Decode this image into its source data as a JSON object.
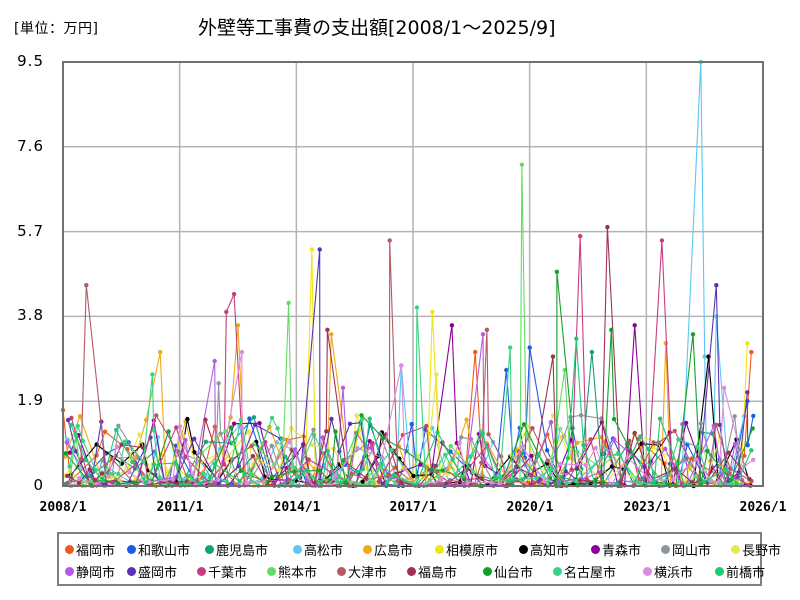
{
  "header": {
    "unit_label": "[単位：万円]",
    "title": "外壁等工事費の支出額[2008/1～2025/9]"
  },
  "chart_data": {
    "type": "line",
    "title": "外壁等工事費の支出額[2008/1～2025/9]",
    "xlabel": "",
    "ylabel": "[単位：万円]",
    "x_range": [
      "2008/1",
      "2026/1"
    ],
    "ylim": [
      0,
      9.5
    ],
    "y_ticks": [
      "0",
      "1.9",
      "3.8",
      "5.7",
      "7.6",
      "9.5"
    ],
    "x_ticks": [
      "2008/1",
      "2011/1",
      "2014/1",
      "2017/1",
      "2020/1",
      "2023/1",
      "2026/1"
    ],
    "grid": true,
    "legend_position": "bottom",
    "series": [
      {
        "name": "福岡市",
        "color": "#f05a1e",
        "peaks": [
          [
            2008.0,
            1.7
          ],
          [
            2018.6,
            3.0
          ],
          [
            2025.7,
            3.0
          ]
        ]
      },
      {
        "name": "和歌山市",
        "color": "#1e5ae6",
        "peaks": [
          [
            2019.4,
            2.6
          ],
          [
            2020.0,
            3.1
          ],
          [
            2025.6,
            1.9
          ]
        ]
      },
      {
        "name": "鹿児島市",
        "color": "#14a078",
        "peaks": [
          [
            2021.6,
            3.0
          ],
          [
            2024.4,
            1.2
          ]
        ]
      },
      {
        "name": "高松市",
        "color": "#5ac8f0",
        "peaks": [
          [
            2024.4,
            9.5
          ],
          [
            2024.5,
            2.9
          ],
          [
            2024.8,
            3.8
          ],
          [
            2016.7,
            2.7
          ]
        ]
      },
      {
        "name": "広島市",
        "color": "#f0aa14",
        "peaks": [
          [
            2010.5,
            3.0
          ],
          [
            2012.5,
            3.6
          ],
          [
            2023.5,
            3.2
          ],
          [
            2014.9,
            3.4
          ]
        ]
      },
      {
        "name": "相模原市",
        "color": "#f0e614",
        "peaks": [
          [
            2014.4,
            5.3
          ],
          [
            2017.5,
            3.9
          ],
          [
            2025.6,
            3.2
          ]
        ]
      },
      {
        "name": "高知市",
        "color": "#000000",
        "peaks": [
          [
            2011.2,
            1.5
          ],
          [
            2016.2,
            1.2
          ],
          [
            2024.6,
            2.9
          ]
        ]
      },
      {
        "name": "青森市",
        "color": "#8c0096",
        "peaks": [
          [
            2018.0,
            3.6
          ],
          [
            2022.7,
            3.6
          ],
          [
            2023.6,
            1.2
          ]
        ]
      },
      {
        "name": "岡山市",
        "color": "#8c96a0",
        "peaks": [
          [
            2012.0,
            2.3
          ],
          [
            2024.4,
            1.4
          ]
        ]
      },
      {
        "name": "長野市",
        "color": "#e6e650",
        "peaks": [
          [
            2017.6,
            2.5
          ],
          [
            2024.9,
            1.1
          ]
        ]
      },
      {
        "name": "静岡市",
        "color": "#b45ae6",
        "peaks": [
          [
            2011.9,
            2.8
          ],
          [
            2015.2,
            2.2
          ],
          [
            2018.8,
            3.4
          ]
        ]
      },
      {
        "name": "盛岡市",
        "color": "#5a32b4",
        "peaks": [
          [
            2014.6,
            5.3
          ],
          [
            2024.8,
            4.5
          ],
          [
            2025.6,
            2.1
          ]
        ]
      },
      {
        "name": "千葉市",
        "color": "#c83c82",
        "peaks": [
          [
            2012.2,
            3.9
          ],
          [
            2012.4,
            4.3
          ],
          [
            2021.3,
            5.6
          ],
          [
            2023.4,
            5.5
          ]
        ]
      },
      {
        "name": "熊本市",
        "color": "#64dc64",
        "peaks": [
          [
            2013.8,
            4.1
          ],
          [
            2019.8,
            7.2
          ],
          [
            2020.9,
            2.6
          ]
        ]
      },
      {
        "name": "大津市",
        "color": "#b45a64",
        "peaks": [
          [
            2008.6,
            4.5
          ],
          [
            2016.4,
            5.5
          ],
          [
            2018.9,
            3.5
          ]
        ]
      },
      {
        "name": "福島市",
        "color": "#a03250",
        "peaks": [
          [
            2022.0,
            5.8
          ],
          [
            2020.6,
            2.9
          ],
          [
            2014.8,
            3.5
          ]
        ]
      },
      {
        "name": "仙台市",
        "color": "#14a028",
        "peaks": [
          [
            2020.7,
            4.8
          ],
          [
            2024.2,
            3.4
          ],
          [
            2022.1,
            3.5
          ]
        ]
      },
      {
        "name": "名古屋市",
        "color": "#3cd282",
        "peaks": [
          [
            2017.1,
            4.0
          ],
          [
            2010.3,
            2.5
          ],
          [
            2019.5,
            3.1
          ]
        ]
      },
      {
        "name": "横浜市",
        "color": "#dc8cdc",
        "peaks": [
          [
            2012.6,
            3.0
          ],
          [
            2016.7,
            2.7
          ],
          [
            2025.0,
            2.2
          ]
        ]
      },
      {
        "name": "前橋市",
        "color": "#1ec878",
        "peaks": [
          [
            2021.2,
            3.3
          ],
          [
            2025.7,
            0.8
          ]
        ]
      }
    ]
  },
  "legend": {
    "row1": [
      {
        "label": "福岡市",
        "color": "#f05a1e"
      },
      {
        "label": "和歌山市",
        "color": "#1e5ae6"
      },
      {
        "label": "鹿児島市",
        "color": "#14a078"
      },
      {
        "label": "高松市",
        "color": "#5ac8f0"
      },
      {
        "label": "広島市",
        "color": "#f0aa14"
      },
      {
        "label": "相模原市",
        "color": "#f0e614"
      },
      {
        "label": "高知市",
        "color": "#000000"
      },
      {
        "label": "青森市",
        "color": "#8c0096"
      },
      {
        "label": "岡山市",
        "color": "#8c96a0"
      },
      {
        "label": "長野市",
        "color": "#e6e650"
      }
    ],
    "row2": [
      {
        "label": "静岡市",
        "color": "#b45ae6"
      },
      {
        "label": "盛岡市",
        "color": "#5a32b4"
      },
      {
        "label": "千葉市",
        "color": "#c83c82"
      },
      {
        "label": "熊本市",
        "color": "#64dc64"
      },
      {
        "label": "大津市",
        "color": "#b45a64"
      },
      {
        "label": "福島市",
        "color": "#a03250"
      },
      {
        "label": "仙台市",
        "color": "#14a028"
      },
      {
        "label": "名古屋市",
        "color": "#3cd282"
      },
      {
        "label": "横浜市",
        "color": "#dc8cdc"
      },
      {
        "label": "前橋市",
        "color": "#1ec878"
      }
    ]
  }
}
